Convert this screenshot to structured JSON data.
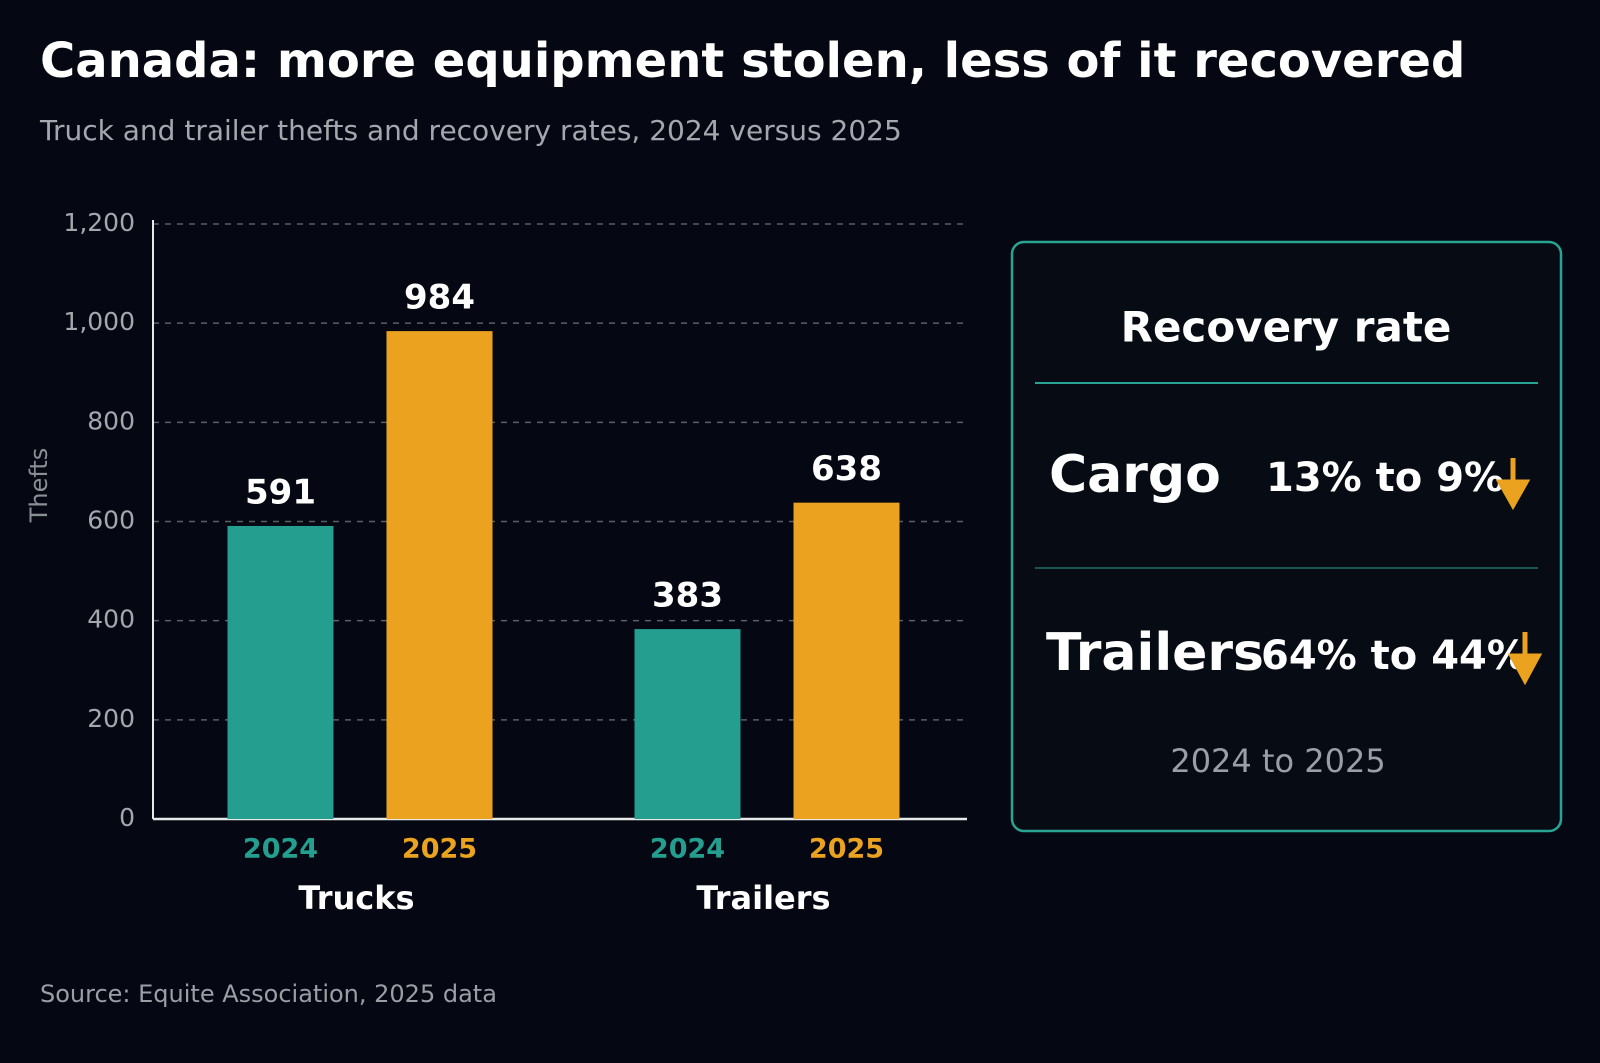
{
  "chart_data": {
    "type": "bar",
    "title": "Canada: more equipment stolen, less of it recovered",
    "subtitle": "Truck and trailer thefts and recovery rates, 2024 versus 2025",
    "y_label": "Thefts",
    "categories": [
      "Trucks",
      "Trailers"
    ],
    "series": [
      {
        "name": "2024",
        "color": "#249f8f",
        "values": [
          591,
          383
        ]
      },
      {
        "name": "2025",
        "color": "#eba21e",
        "values": [
          984,
          638
        ]
      }
    ],
    "ylim": [
      0,
      1200
    ],
    "yticks": [
      0,
      200,
      400,
      600,
      800,
      {
        "value": 1000,
        "label": "1,000"
      },
      {
        "value": 1200,
        "label": "1,200"
      }
    ],
    "grid": true,
    "source": "Source: Equite Association, 2025 data"
  },
  "recovery_panel": {
    "title": "Recovery rate",
    "rows": [
      {
        "label": "Cargo",
        "value": "13% to 9%"
      },
      {
        "label": "Trailers",
        "value": "64% to 44%"
      }
    ],
    "note": "2024 to 2025"
  }
}
